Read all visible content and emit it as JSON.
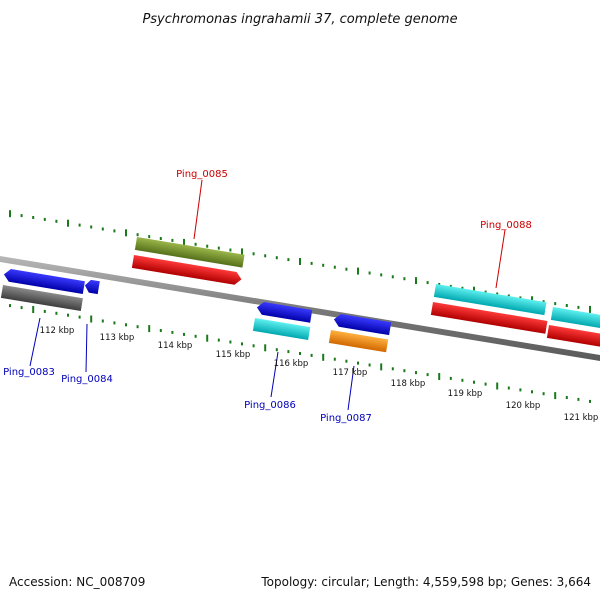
{
  "title": "Psychromonas ingrahamii 37, complete genome",
  "footer": {
    "accession": "Accession: NC_008709",
    "summary": "Topology: circular; Length: 4,559,598 bp; Genes: 3,664"
  },
  "colors": {
    "backbone": "#8a8a8a",
    "tick": "#1a7a1a",
    "label_forward": "#cc0000",
    "label_reverse": "#0000bb"
  },
  "scale_labels": [
    "112 kbp",
    "113 kbp",
    "114 kbp",
    "115 kbp",
    "116 kbp",
    "117 kbp",
    "118 kbp",
    "119 kbp",
    "120 kbp",
    "121 kbp"
  ],
  "gene_labels": [
    {
      "id": "Ping_0083",
      "strand": "reverse"
    },
    {
      "id": "Ping_0084",
      "strand": "reverse"
    },
    {
      "id": "Ping_0085",
      "strand": "forward"
    },
    {
      "id": "Ping_0086",
      "strand": "reverse"
    },
    {
      "id": "Ping_0087",
      "strand": "reverse"
    },
    {
      "id": "Ping_0088",
      "strand": "forward"
    }
  ]
}
